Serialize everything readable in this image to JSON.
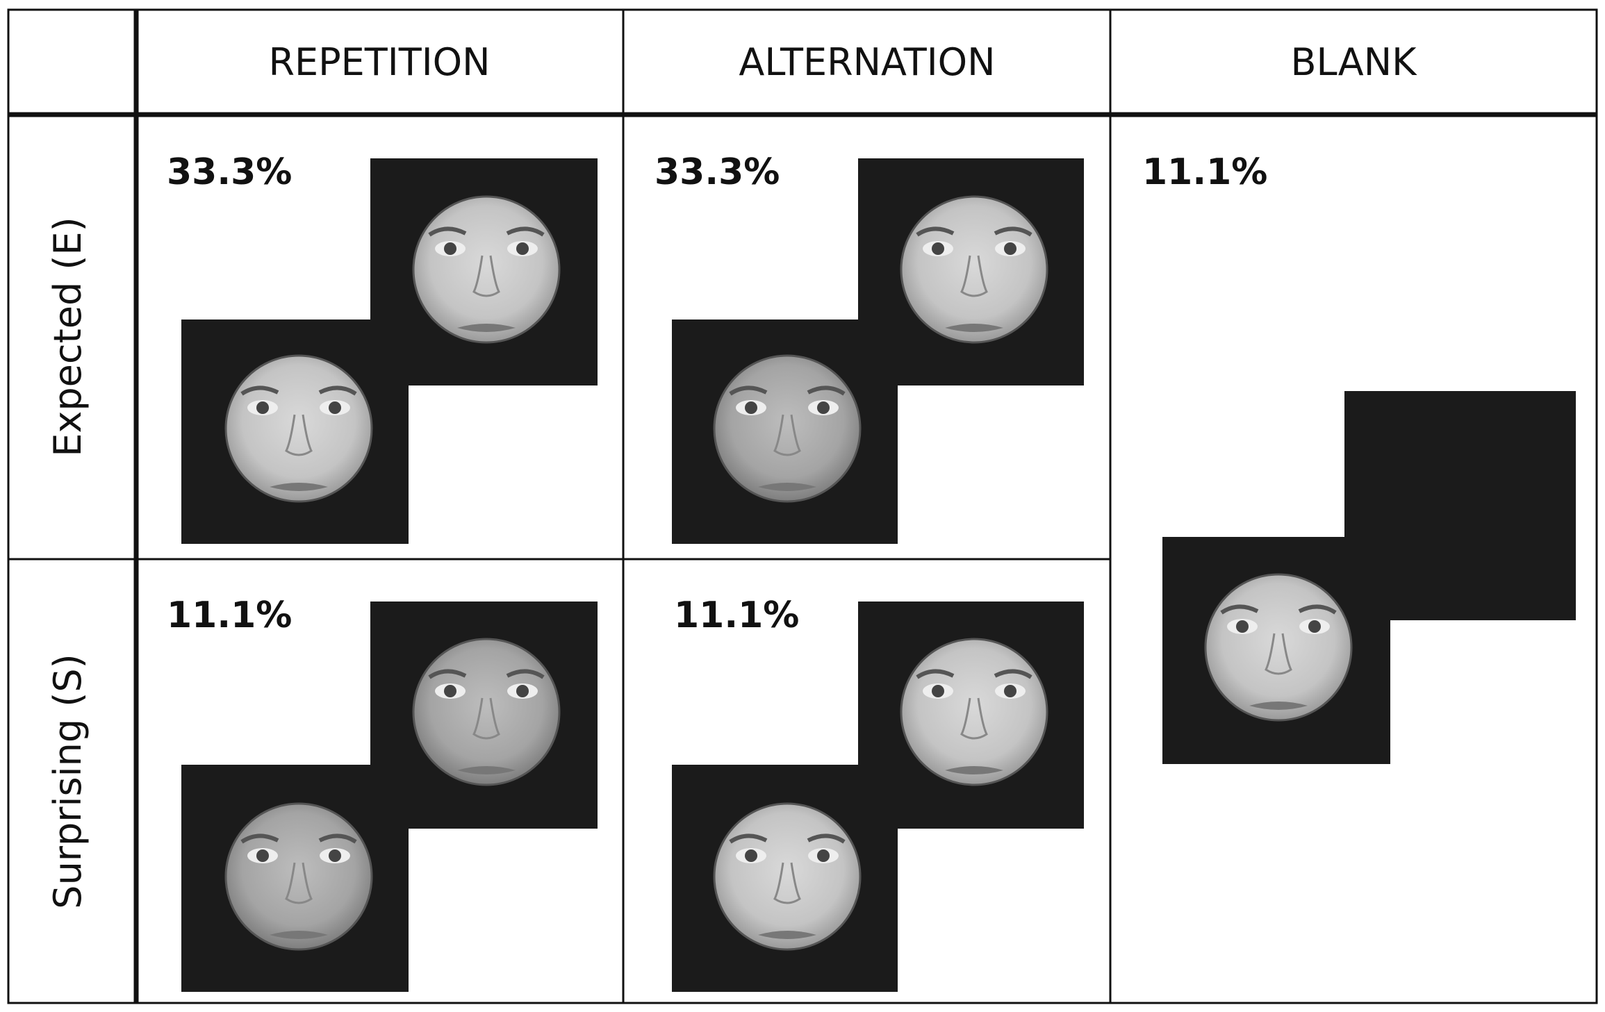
{
  "columns": [
    {
      "label": "REPETITION"
    },
    {
      "label": "ALTERNATION"
    },
    {
      "label": "BLANK"
    }
  ],
  "rows": [
    {
      "label": "Expected (E)"
    },
    {
      "label": "Surprising (S)"
    }
  ],
  "cells": [
    {
      "percent": "33.3%",
      "first_face": "female-face",
      "second_face": "female-face"
    },
    {
      "percent": "33.3%",
      "first_face": "male-face",
      "second_face": "female-face"
    },
    {
      "percent": "11.1%",
      "first_face": "female-face",
      "second_face": "none"
    },
    {
      "percent": "11.1%",
      "first_face": "male-face",
      "second_face": "male-face"
    },
    {
      "percent": "11.1%",
      "first_face": "female-face",
      "second_face": "female-face"
    }
  ],
  "colors": {
    "frame": "#1b1b1b",
    "face_light": "#d6d6d6",
    "face_dark": "#8a8a8a",
    "grid": "#111111"
  }
}
